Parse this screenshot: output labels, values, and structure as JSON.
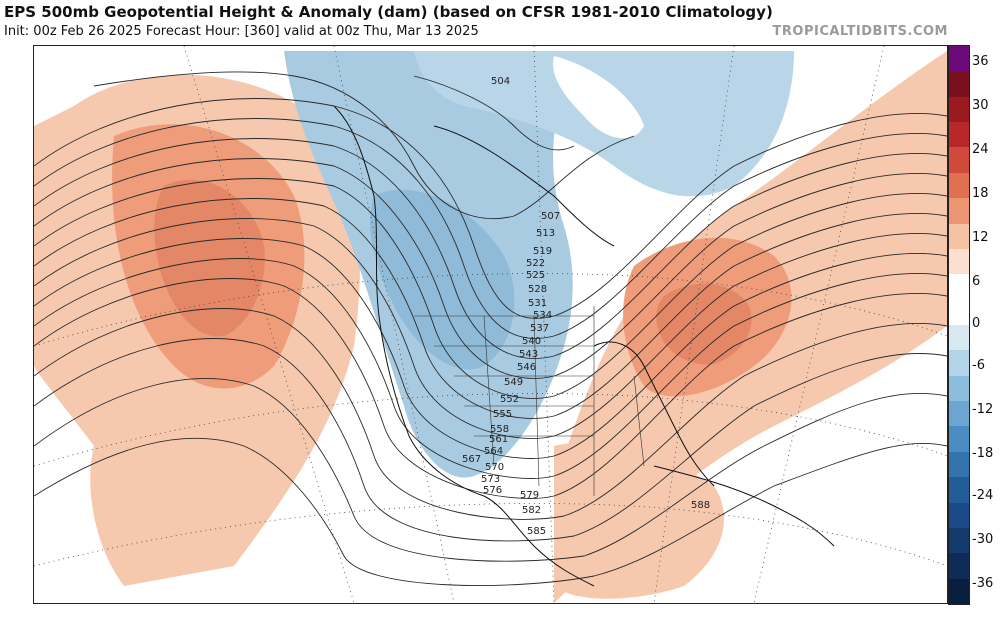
{
  "header": {
    "title": "EPS 500mb Geopotential Height & Anomaly (dam) (based on CFSR 1981-2010 Climatology)",
    "subtitle": "Init: 00z Feb 26 2025   Forecast Hour: [360]   valid at 00z Thu, Mar 13 2025",
    "brand": "TROPICALTIDBITS.COM"
  },
  "contour_labels": [
    "504",
    "507",
    "513",
    "519",
    "522",
    "525",
    "528",
    "531",
    "534",
    "537",
    "540",
    "543",
    "546",
    "549",
    "552",
    "555",
    "558",
    "561",
    "564",
    "567",
    "570",
    "573",
    "576",
    "579",
    "582",
    "585",
    "588"
  ],
  "colorbar": {
    "ticks": [
      "36",
      "30",
      "24",
      "18",
      "12",
      "6",
      "0",
      "-6",
      "-12",
      "-18",
      "-24",
      "-30",
      "-36"
    ],
    "colors": [
      "#6a0a7a",
      "#7a0f1e",
      "#9b1a1f",
      "#b8282a",
      "#cf4a3a",
      "#e0704f",
      "#ec9572",
      "#f5c2a4",
      "#fbe0d0",
      "#ffffff",
      "#ffffff",
      "#d8e8f2",
      "#b3d3e8",
      "#8cbedc",
      "#6aa6cf",
      "#4b8dc0",
      "#3373ae",
      "#245c9a",
      "#1a4a85",
      "#143b6e",
      "#0e2c57",
      "#0a1f40"
    ]
  }
}
